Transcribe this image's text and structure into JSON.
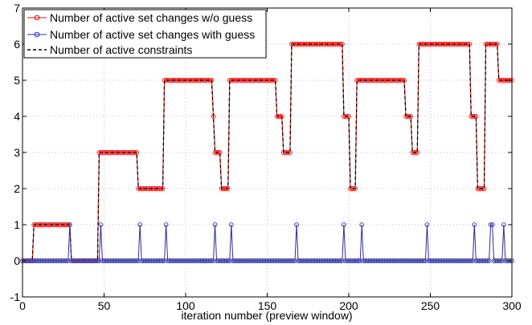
{
  "chart_data": {
    "type": "line",
    "title": "",
    "xlabel": "iteration number (preview window)",
    "ylabel": "",
    "xlim": [
      0,
      300
    ],
    "ylim": [
      -1,
      7
    ],
    "xticks": [
      0,
      50,
      100,
      150,
      200,
      250,
      300
    ],
    "yticks": [
      -1,
      0,
      1,
      2,
      3,
      4,
      5,
      6,
      7
    ],
    "grid": true,
    "legend_position": "top-left",
    "series": [
      {
        "name": "Number of active set changes w/o guess",
        "color": "#ff0000",
        "marker": "circle",
        "segments": [
          [
            0,
            0
          ],
          [
            6,
            0
          ],
          [
            7,
            1
          ],
          [
            29,
            1
          ],
          [
            30,
            0
          ],
          [
            46,
            0
          ],
          [
            47,
            3
          ],
          [
            70,
            3
          ],
          [
            71,
            2
          ],
          [
            86,
            2
          ],
          [
            87,
            5
          ],
          [
            116,
            5
          ],
          [
            117,
            4
          ],
          [
            118,
            3
          ],
          [
            121,
            3
          ],
          [
            122,
            2
          ],
          [
            126,
            2
          ],
          [
            127,
            5
          ],
          [
            155,
            5
          ],
          [
            156,
            4
          ],
          [
            159,
            4
          ],
          [
            160,
            3
          ],
          [
            164,
            3
          ],
          [
            165,
            6
          ],
          [
            196,
            6
          ],
          [
            197,
            4
          ],
          [
            200,
            4
          ],
          [
            201,
            2
          ],
          [
            204,
            2
          ],
          [
            205,
            5
          ],
          [
            234,
            5
          ],
          [
            235,
            4
          ],
          [
            238,
            4
          ],
          [
            239,
            3
          ],
          [
            242,
            3
          ],
          [
            243,
            6
          ],
          [
            274,
            6
          ],
          [
            275,
            4
          ],
          [
            278,
            4
          ],
          [
            279,
            2
          ],
          [
            283,
            2
          ],
          [
            284,
            6
          ],
          [
            291,
            6
          ],
          [
            292,
            5
          ],
          [
            300,
            5
          ]
        ]
      },
      {
        "name": "Number of active set changes with guess",
        "color": "#2b2b9c",
        "marker": "circle",
        "spikes": [
          29,
          48,
          72,
          88,
          118,
          128,
          168,
          197,
          208,
          248,
          277,
          287,
          288,
          295
        ]
      },
      {
        "name": "Number of active constraints",
        "color": "#000000",
        "style": "dashed"
      }
    ]
  }
}
